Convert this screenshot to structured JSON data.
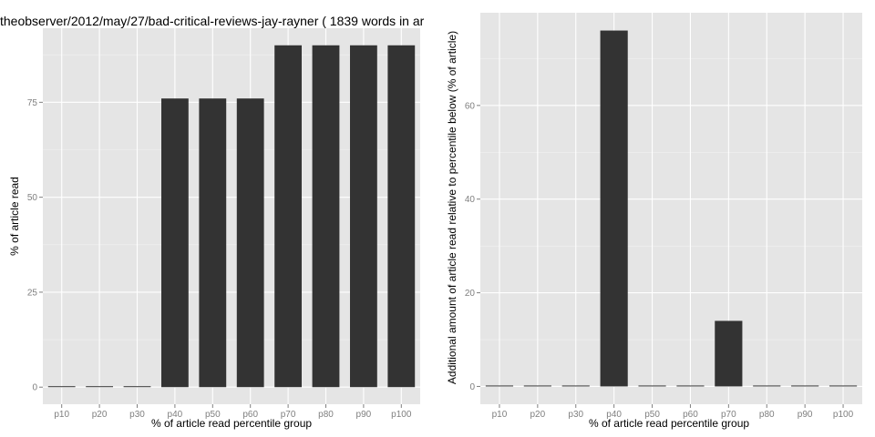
{
  "chart_data": [
    {
      "type": "bar",
      "title": "theobserver/2012/may/27/bad-critical-reviews-jay-rayner ( 1839 words in ar",
      "xlabel": "% of article read percentile group",
      "ylabel": "% of article read",
      "categories": [
        "p10",
        "p20",
        "p30",
        "p40",
        "p50",
        "p60",
        "p70",
        "p80",
        "p90",
        "p100"
      ],
      "values": [
        0,
        0,
        0,
        76,
        76,
        76,
        90,
        90,
        90,
        90
      ],
      "ylim": [
        -4.5,
        94.5
      ],
      "yticks": [
        0,
        25,
        50,
        75
      ],
      "ytick_labels": [
        "0",
        "25",
        "50",
        "75"
      ],
      "grid": true,
      "legend": "none"
    },
    {
      "type": "bar",
      "title": "",
      "xlabel": "% of article read percentile group",
      "ylabel": "Additional amount of article read relative to percentile below (% of article)",
      "categories": [
        "p10",
        "p20",
        "p30",
        "p40",
        "p50",
        "p60",
        "p70",
        "p80",
        "p90",
        "p100"
      ],
      "values": [
        0,
        0,
        0,
        76,
        0,
        0,
        14,
        0,
        0,
        0
      ],
      "ylim": [
        -3.8,
        79.8
      ],
      "yticks": [
        0,
        20,
        40,
        60
      ],
      "ytick_labels": [
        "0",
        "20",
        "40",
        "60"
      ],
      "grid": true,
      "legend": "none"
    }
  ]
}
